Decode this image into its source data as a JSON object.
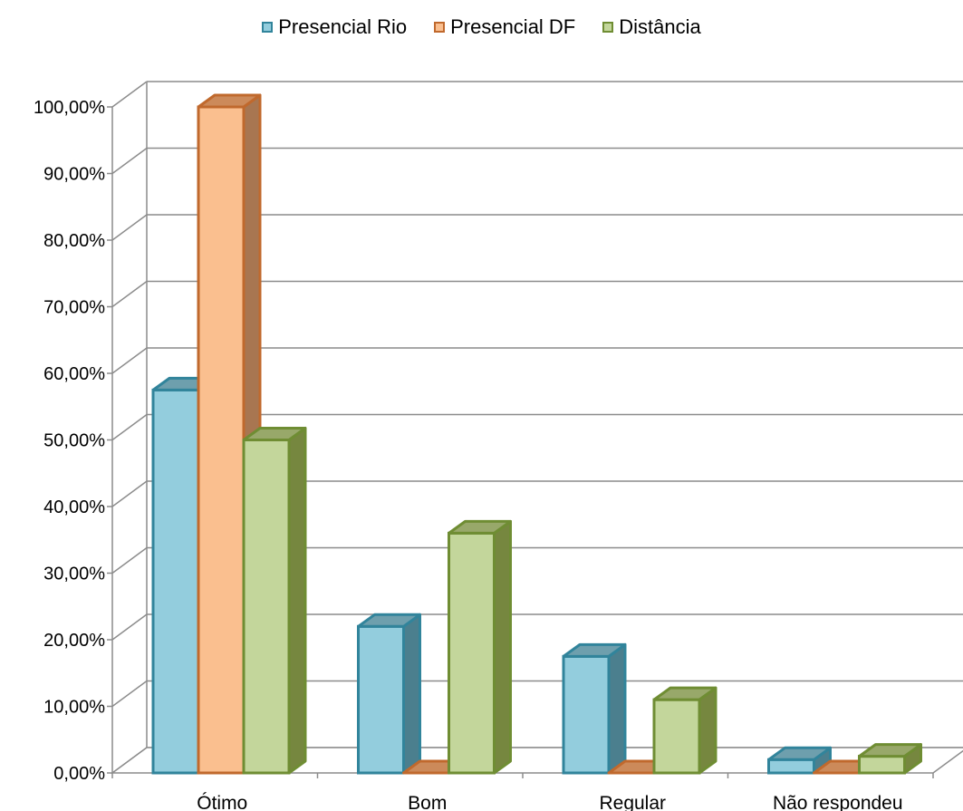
{
  "chart_data": {
    "type": "bar",
    "categories": [
      "Ótimo",
      "Bom",
      "Regular",
      "Não respondeu"
    ],
    "series": [
      {
        "name": "Presencial Rio",
        "values": [
          57.5,
          22,
          17.5,
          2
        ],
        "color": "#93CDDD",
        "stroke": "#31849B",
        "side": "#4B7F8E",
        "top": "#6E9FAD"
      },
      {
        "name": "Presencial DF",
        "values": [
          100,
          0,
          0,
          0
        ],
        "color": "#FABF8F",
        "stroke": "#C0692D",
        "side": "#A87651",
        "top": "#CC8A5A"
      },
      {
        "name": "Distância",
        "values": [
          50,
          36,
          11,
          2.5
        ],
        "color": "#C3D69B",
        "stroke": "#6F8D33",
        "side": "#76873F",
        "top": "#98A86A"
      }
    ],
    "yticks": [
      "0,00%",
      "10,00%",
      "20,00%",
      "30,00%",
      "40,00%",
      "50,00%",
      "60,00%",
      "70,00%",
      "80,00%",
      "90,00%",
      "100,00%"
    ],
    "ylim": [
      0,
      100
    ],
    "grid": true,
    "legend": "top-center",
    "title": "",
    "xlabel": "",
    "ylabel": ""
  }
}
